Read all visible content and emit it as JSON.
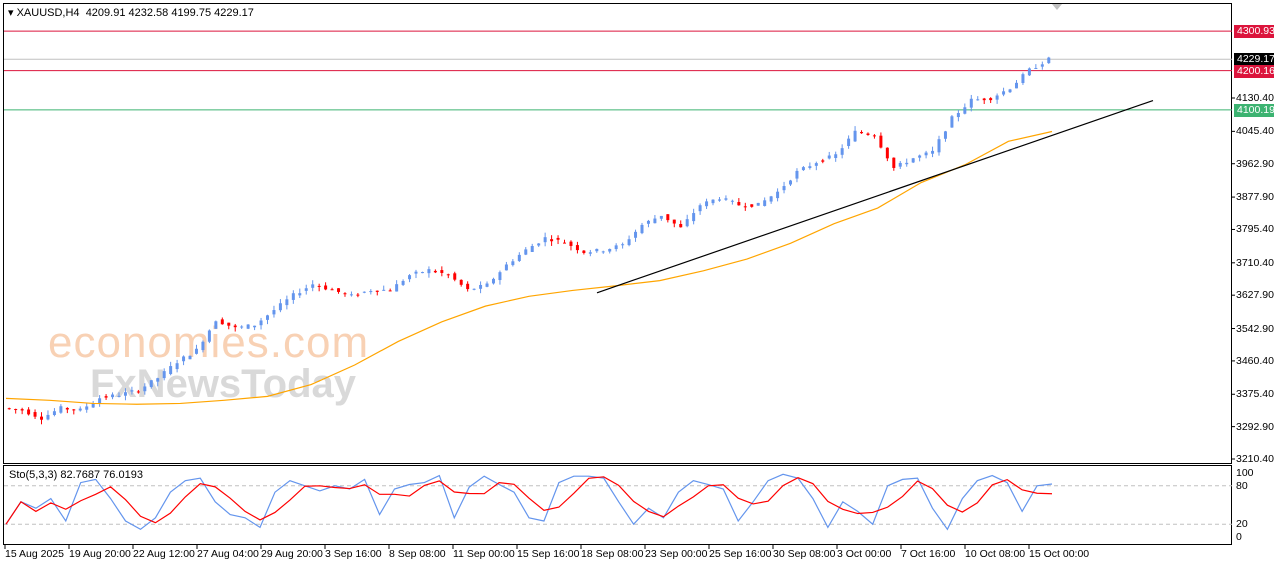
{
  "header": {
    "symbol": "XAUUSD,H4",
    "ohlc": "4209.91 4232.58 4199.75 4229.17"
  },
  "levels": [
    {
      "value": "4300.93",
      "color": "#dc143c"
    },
    {
      "value": "4229.17",
      "color": "#000000"
    },
    {
      "value": "4200.16",
      "color": "#dc143c"
    },
    {
      "value": "4100.19",
      "color": "#3cb371"
    }
  ],
  "price_ticks": [
    "4130.40",
    "4045.40",
    "3962.90",
    "3877.90",
    "3795.40",
    "3710.40",
    "3627.90",
    "3542.90",
    "3460.40",
    "3375.40",
    "3292.90",
    "3210.40"
  ],
  "time_ticks": [
    "15 Aug 2025",
    "19 Aug 20:00",
    "22 Aug 12:00",
    "27 Aug 04:00",
    "29 Aug 20:00",
    "3 Sep 16:00",
    "8 Sep 08:00",
    "11 Sep 00:00",
    "15 Sep 16:00",
    "18 Sep 08:00",
    "23 Sep 00:00",
    "25 Sep 16:00",
    "30 Sep 08:00",
    "3 Oct 00:00",
    "7 Oct 16:00",
    "10 Oct 08:00",
    "15 Oct 00:00"
  ],
  "stoch": {
    "label": "Sto(5,3,3) 82.7687 76.0193",
    "levels": [
      "100",
      "80",
      "20",
      "0"
    ]
  },
  "watermark": {
    "line1": "economies.com",
    "line2": "FxNewsToday"
  },
  "colors": {
    "bull": "#6495ed",
    "bear": "#ff0000",
    "ma": "#ffa500",
    "trend": "#000000",
    "k": "#6495ed",
    "d": "#ff0000"
  },
  "chart_data": {
    "type": "candlestick",
    "symbol": "XAUUSD",
    "timeframe": "H4",
    "ylim": [
      3210.4,
      4300.93
    ],
    "closes": [
      3340,
      3335,
      3315,
      3340,
      3335,
      3366,
      3374,
      3386,
      3417,
      3458,
      3488,
      3565,
      3544,
      3552,
      3590,
      3628,
      3656,
      3641,
      3626,
      3641,
      3641,
      3679,
      3692,
      3679,
      3641,
      3654,
      3705,
      3743,
      3774,
      3763,
      3738,
      3743,
      3756,
      3807,
      3832,
      3799,
      3858,
      3876,
      3858,
      3858,
      3891,
      3942,
      3967,
      3985,
      4044,
      4036,
      3952,
      3977,
      3993,
      4079,
      4125,
      4130,
      4156,
      4202,
      4229.17
    ],
    "moving_average": [
      3365,
      3360,
      3352,
      3350,
      3352,
      3360,
      3370,
      3400,
      3450,
      3510,
      3560,
      3600,
      3625,
      3640,
      3652,
      3665,
      3690,
      3720,
      3760,
      3810,
      3850,
      3915,
      3960,
      4020,
      4045
    ],
    "trendline": {
      "start": {
        "time": "18 Sep 08:00",
        "price": 3634
      },
      "end": {
        "price": 4124
      }
    },
    "stochastic_k": [
      20,
      55,
      45,
      60,
      25,
      85,
      90,
      60,
      25,
      12,
      30,
      70,
      88,
      92,
      55,
      35,
      30,
      15,
      70,
      88,
      80,
      72,
      80,
      75,
      90,
      35,
      75,
      82,
      85,
      96,
      30,
      78,
      95,
      82,
      70,
      30,
      25,
      85,
      95,
      95,
      92,
      55,
      20,
      45,
      30,
      70,
      88,
      82,
      75,
      25,
      55,
      88,
      98,
      92,
      60,
      15,
      55,
      40,
      20,
      80,
      90,
      92,
      45,
      12,
      60,
      88,
      96,
      85,
      40,
      80,
      82.7687
    ]
  }
}
